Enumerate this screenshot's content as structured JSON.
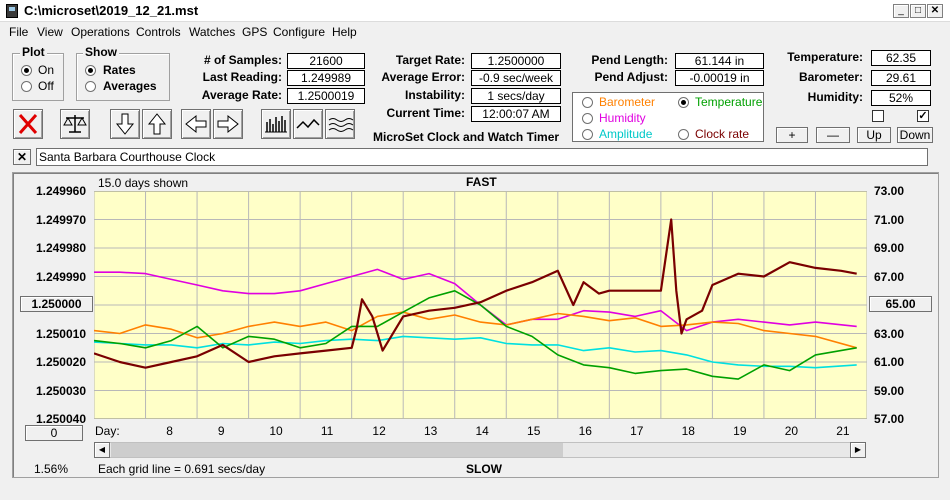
{
  "window": {
    "title": "C:\\microset\\2019_12_21.mst"
  },
  "menu": [
    "File",
    "View",
    "Operations",
    "Controls",
    "Watches",
    "GPS",
    "Configure",
    "Help"
  ],
  "plot_group": {
    "legend": "Plot",
    "on_label": "On",
    "off_label": "Off",
    "selected": "On"
  },
  "show_group": {
    "legend": "Show",
    "rates_label": "Rates",
    "averages_label": "Averages",
    "selected": "Rates"
  },
  "stats": {
    "samples_label": "# of Samples:",
    "samples_value": "21600",
    "last_label": "Last Reading:",
    "last_value": "1.249989",
    "avg_label": "Average Rate:",
    "avg_value": "1.2500019",
    "target_label": "Target Rate:",
    "target_value": "1.2500000",
    "err_label": "Average Error:",
    "err_value": "-0.9 sec/week",
    "instab_label": "Instability:",
    "instab_value": "1 secs/day",
    "time_label": "Current Time:",
    "time_value": "12:00:07 AM",
    "pendlen_label": "Pend Length:",
    "pendlen_value": "61.144 in",
    "pendadj_label": "Pend Adjust:",
    "pendadj_value": "-0.00019 in",
    "temp_label": "Temperature:",
    "temp_value": "62.35",
    "baro_label": "Barometer:",
    "baro_value": "29.61",
    "hum_label": "Humidity:",
    "hum_value": "52%"
  },
  "app_name": "MicroSet Clock and Watch Timer",
  "sensor_select": {
    "barometer": "Barometer",
    "temperature": "Temperature",
    "humidity": "Humidity",
    "amplitude": "Amplitude",
    "clockrate": "Clock rate",
    "selected": "Temperature"
  },
  "sensor_buttons": {
    "plus": "+",
    "minus": "—",
    "up": "Up",
    "down": "Down"
  },
  "checkboxes": [
    false,
    true
  ],
  "clock_name": "Santa Barbara Courthouse Clock",
  "clock_close": "✕",
  "graph": {
    "days_shown": "15.0 days shown",
    "fast_label": "FAST",
    "slow_label": "SLOW",
    "grid_note": "Each grid line = 0.691 secs/day",
    "percent": "1.56%",
    "center_left": "1.250000",
    "center_right": "65.00",
    "scroll_left": "0",
    "day_prefix": "Day:",
    "left_ticks": [
      "1.249960",
      "1.249970",
      "1.249980",
      "1.249990",
      "",
      "1.250010",
      "1.250020",
      "1.250030",
      "1.250040"
    ],
    "right_ticks": [
      "73.00",
      "71.00",
      "69.00",
      "67.00",
      "",
      "63.00",
      "61.00",
      "59.00",
      "57.00"
    ],
    "days": [
      "8",
      "9",
      "10",
      "11",
      "12",
      "13",
      "14",
      "15",
      "16",
      "17",
      "18",
      "19",
      "20",
      "21"
    ]
  },
  "colors": {
    "plot_bg": "#ffffc8",
    "rate": "#7a0000",
    "temperature": "#00a000",
    "barometer": "#ff8000",
    "humidity": "#e000e0",
    "amplitude": "#00e0e0"
  },
  "chart_data": {
    "type": "line",
    "title": "",
    "xlabel": "Day:",
    "ylabel": "",
    "x_range": [
      7,
      22
    ],
    "ylim_left": [
      1.24996,
      1.25004
    ],
    "ylim_right": [
      57.0,
      73.0
    ],
    "series": [
      {
        "name": "Clock rate",
        "axis": "left",
        "color": "#7a0000",
        "x": [
          7.0,
          7.5,
          8.0,
          8.5,
          9.0,
          9.5,
          10.0,
          10.5,
          11.0,
          11.5,
          12.0,
          12.1,
          12.2,
          12.4,
          12.6,
          13.0,
          13.5,
          14.0,
          14.5,
          15.0,
          15.5,
          16.0,
          16.3,
          16.5,
          16.8,
          17.0,
          17.5,
          18.0,
          18.2,
          18.3,
          18.4,
          18.5,
          18.8,
          19.0,
          19.5,
          20.0,
          20.5,
          21.0,
          21.5,
          21.8
        ],
        "y": [
          1.250017,
          1.25002,
          1.250022,
          1.25002,
          1.250018,
          1.250014,
          1.25002,
          1.250018,
          1.250017,
          1.250016,
          1.250015,
          1.250008,
          1.249998,
          1.250004,
          1.250016,
          1.250004,
          1.250002,
          1.250001,
          1.249999,
          1.249995,
          1.249992,
          1.249988,
          1.25,
          1.249992,
          1.249996,
          1.249995,
          1.249995,
          1.249995,
          1.24997,
          1.249995,
          1.25001,
          1.250005,
          1.250002,
          1.249993,
          1.249989,
          1.24999,
          1.249985,
          1.249987,
          1.249988,
          1.249989
        ]
      },
      {
        "name": "Temperature",
        "axis": "right",
        "color": "#00a000",
        "x": [
          7.0,
          7.5,
          8.0,
          8.5,
          9.0,
          9.5,
          10.0,
          10.5,
          11.0,
          11.5,
          12.0,
          12.5,
          13.0,
          13.5,
          14.0,
          14.5,
          15.0,
          15.5,
          16.0,
          16.5,
          17.0,
          17.5,
          18.0,
          18.5,
          19.0,
          19.5,
          20.0,
          20.5,
          21.0,
          21.8
        ],
        "y": [
          62.5,
          62.3,
          62.0,
          62.5,
          63.5,
          62.0,
          62.8,
          62.6,
          62.0,
          62.3,
          63.5,
          63.5,
          64.5,
          65.5,
          66.0,
          65.0,
          63.5,
          62.8,
          61.5,
          60.8,
          60.6,
          60.2,
          60.4,
          60.5,
          60.0,
          59.8,
          60.8,
          60.4,
          61.5,
          62.0
        ]
      },
      {
        "name": "Barometer",
        "axis": "right",
        "color": "#ff8000",
        "x": [
          7.0,
          7.5,
          8.0,
          8.5,
          9.0,
          9.5,
          10.0,
          10.5,
          11.0,
          11.5,
          12.0,
          12.5,
          13.0,
          13.5,
          14.0,
          14.5,
          15.0,
          15.5,
          16.0,
          16.5,
          17.0,
          17.5,
          18.0,
          18.5,
          19.0,
          19.5,
          20.0,
          20.5,
          21.0,
          21.8
        ],
        "y": [
          63.2,
          63.0,
          63.6,
          63.3,
          62.7,
          63.0,
          63.5,
          63.8,
          63.5,
          63.8,
          63.2,
          64.2,
          64.5,
          64.0,
          64.3,
          63.8,
          63.6,
          64.0,
          64.4,
          64.2,
          63.9,
          64.1,
          63.5,
          63.6,
          63.8,
          63.7,
          63.2,
          63.0,
          62.8,
          62.0
        ]
      },
      {
        "name": "Humidity",
        "axis": "right",
        "color": "#e000e0",
        "x": [
          7.0,
          7.5,
          8.0,
          8.5,
          9.0,
          9.5,
          10.0,
          10.5,
          11.0,
          11.5,
          12.0,
          12.5,
          13.0,
          13.5,
          14.0,
          14.5,
          15.0,
          15.5,
          16.0,
          16.5,
          17.0,
          17.5,
          18.0,
          18.5,
          19.0,
          19.5,
          20.0,
          20.5,
          21.0,
          21.8
        ],
        "y": [
          67.3,
          67.3,
          67.2,
          66.8,
          66.4,
          66.0,
          65.8,
          65.8,
          66.0,
          66.5,
          67.0,
          67.5,
          66.8,
          67.2,
          66.5,
          65.0,
          63.6,
          64.0,
          64.0,
          64.6,
          64.5,
          64.2,
          64.6,
          63.2,
          63.8,
          64.0,
          63.8,
          63.6,
          63.8,
          63.5
        ]
      },
      {
        "name": "Amplitude",
        "axis": "right",
        "color": "#00e0e0",
        "x": [
          7.0,
          7.5,
          8.0,
          8.5,
          9.0,
          9.5,
          10.0,
          10.5,
          11.0,
          11.5,
          12.0,
          12.5,
          13.0,
          13.5,
          14.0,
          14.5,
          15.0,
          15.5,
          16.0,
          16.5,
          17.0,
          17.5,
          18.0,
          18.5,
          19.0,
          19.5,
          20.0,
          20.5,
          21.0,
          21.8
        ],
        "y": [
          62.4,
          62.3,
          62.2,
          62.2,
          62.0,
          62.3,
          62.2,
          62.4,
          62.3,
          62.5,
          62.6,
          62.5,
          62.8,
          62.7,
          62.6,
          62.7,
          62.3,
          62.2,
          62.2,
          61.8,
          62.0,
          61.7,
          61.8,
          61.5,
          61.0,
          60.8,
          60.7,
          60.7,
          60.6,
          60.8
        ]
      }
    ]
  }
}
